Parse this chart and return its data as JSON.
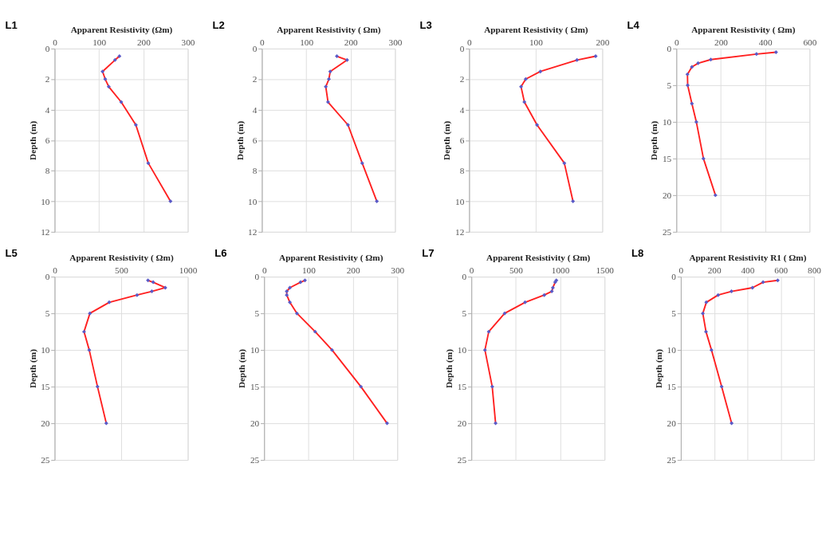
{
  "chart_data": [
    {
      "type": "line",
      "title": "L1",
      "xlabel": "Apparent Resistivity (Ωm)",
      "ylabel": "Depth (m)",
      "xlim": [
        0,
        300
      ],
      "xticks": [
        0,
        100,
        200,
        300
      ],
      "ylim": [
        12,
        0
      ],
      "yticks": [
        0,
        2,
        4,
        6,
        8,
        10,
        12
      ],
      "grid": true,
      "marker": "diamond",
      "line_style": "solid",
      "series": [
        {
          "color": "#ff2020",
          "x": [
            146,
            136,
            108,
            114,
            122,
            150,
            183,
            211,
            261
          ],
          "values": [
            0.5,
            0.75,
            1.5,
            2,
            2.5,
            3.5,
            5,
            7.5,
            10
          ]
        }
      ]
    },
    {
      "type": "line",
      "title": "L2",
      "xlabel": "Apparent Resistivity ( Ωm)",
      "ylabel": "Depth (m)",
      "xlim": [
        0,
        300
      ],
      "xticks": [
        0,
        100,
        200,
        300
      ],
      "ylim": [
        12,
        0
      ],
      "yticks": [
        0,
        2,
        4,
        6,
        8,
        10,
        12
      ],
      "grid": true,
      "marker": "diamond",
      "line_style": "solid",
      "series": [
        {
          "color": "#ff2020",
          "x": [
            169,
            192,
            154,
            151,
            144,
            149,
            194,
            226,
            259
          ],
          "values": [
            0.5,
            0.75,
            1.5,
            2,
            2.5,
            3.5,
            5,
            7.5,
            10
          ]
        }
      ]
    },
    {
      "type": "line",
      "title": "L3",
      "xlabel": "Apparent Resistivity ( Ωm)",
      "ylabel": "Depth (m)",
      "xlim": [
        0,
        200
      ],
      "xticks": [
        0,
        100,
        200
      ],
      "ylim": [
        12,
        0
      ],
      "yticks": [
        0,
        2,
        4,
        6,
        8,
        10,
        12
      ],
      "grid": true,
      "marker": "diamond",
      "line_style": "solid",
      "series": [
        {
          "color": "#ff2020",
          "x": [
            190,
            162,
            107,
            85,
            78,
            83,
            102,
            143,
            156
          ],
          "values": [
            0.5,
            0.75,
            1.5,
            2,
            2.5,
            3.5,
            5,
            7.5,
            10
          ]
        }
      ]
    },
    {
      "type": "line",
      "title": "L4",
      "xlabel": "Apparent Resistivity ( Ωm)",
      "ylabel": "Depth (m)",
      "xlim": [
        0,
        600
      ],
      "xticks": [
        0,
        200,
        400,
        600
      ],
      "ylim": [
        25,
        0
      ],
      "yticks": [
        0,
        5,
        10,
        15,
        20,
        25
      ],
      "grid": true,
      "marker": "diamond",
      "line_style": "solid",
      "series": [
        {
          "color": "#ff2020",
          "x": [
            449,
            361,
            155,
            98,
            70,
            50,
            51,
            70,
            90,
            122,
            176
          ],
          "values": [
            0.5,
            0.75,
            1.5,
            2,
            2.5,
            3.5,
            5,
            7.5,
            10,
            15,
            20
          ]
        }
      ]
    },
    {
      "type": "line",
      "title": "L5",
      "xlabel": "Apparent Resistivity ( Ωm)",
      "ylabel": "Depth (m)",
      "xlim": [
        0,
        1000
      ],
      "xticks": [
        0,
        500,
        1000
      ],
      "ylim": [
        25,
        0
      ],
      "yticks": [
        0,
        5,
        10,
        15,
        20,
        25
      ],
      "grid": true,
      "marker": "diamond",
      "line_style": "solid",
      "series": [
        {
          "color": "#ff2020",
          "x": [
            701,
            740,
            831,
            730,
            619,
            410,
            265,
            221,
            260,
            322,
            388
          ],
          "values": [
            0.5,
            0.75,
            1.5,
            2,
            2.5,
            3.5,
            5,
            7.5,
            10,
            15,
            20
          ]
        }
      ]
    },
    {
      "type": "line",
      "title": "L6",
      "xlabel": "Apparent Resistivity ( Ωm)",
      "ylabel": "Depth (m)",
      "xlim": [
        0,
        300
      ],
      "xticks": [
        0,
        100,
        200,
        300
      ],
      "ylim": [
        25,
        0
      ],
      "yticks": [
        0,
        5,
        10,
        15,
        20,
        25
      ],
      "grid": true,
      "marker": "diamond",
      "line_style": "solid",
      "series": [
        {
          "color": "#ff2020",
          "x": [
            92,
            82,
            58,
            51,
            51,
            58,
            74,
            115,
            153,
            218,
            277
          ],
          "values": [
            0.5,
            0.75,
            1.5,
            2,
            2.5,
            3.5,
            5,
            7.5,
            10,
            15,
            20
          ]
        }
      ]
    },
    {
      "type": "line",
      "title": "L7",
      "xlabel": "Apparent Resistivity ( Ωm)",
      "ylabel": "Depth (m)",
      "xlim": [
        0,
        1500
      ],
      "xticks": [
        0,
        500,
        1000,
        1500
      ],
      "ylim": [
        25,
        0
      ],
      "yticks": [
        0,
        5,
        10,
        15,
        20,
        25
      ],
      "grid": true,
      "marker": "diamond",
      "line_style": "solid",
      "series": [
        {
          "color": "#ff2020",
          "x": [
            957,
            944,
            918,
            906,
            821,
            605,
            375,
            196,
            153,
            235,
            273
          ],
          "values": [
            0.5,
            0.75,
            1.5,
            2,
            2.5,
            3.5,
            5,
            7.5,
            10,
            15,
            20
          ]
        }
      ]
    },
    {
      "type": "line",
      "title": "L8",
      "xlabel": "Apparent Resistivity R1 ( Ωm)",
      "ylabel": "Depth (m)",
      "xlim": [
        0,
        800
      ],
      "xticks": [
        0,
        200,
        400,
        600,
        800
      ],
      "ylim": [
        25,
        0
      ],
      "yticks": [
        0,
        5,
        10,
        15,
        20,
        25
      ],
      "grid": true,
      "marker": "diamond",
      "line_style": "solid",
      "series": [
        {
          "color": "#ff2020",
          "x": [
            582,
            494,
            430,
            304,
            224,
            153,
            132,
            151,
            184,
            245,
            305
          ],
          "values": [
            0.5,
            0.75,
            1.5,
            2,
            2.5,
            3.5,
            5,
            7.5,
            10,
            15,
            20
          ]
        }
      ]
    }
  ]
}
